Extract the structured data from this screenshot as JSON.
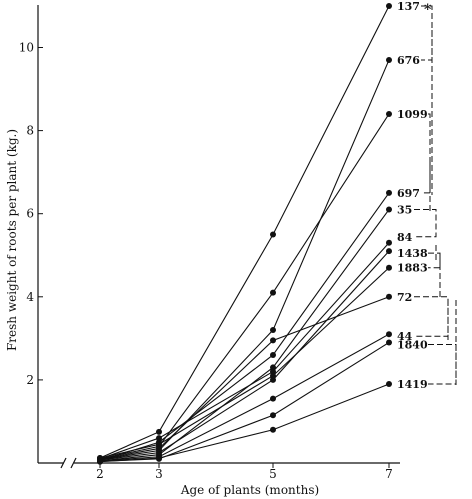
{
  "chart_data": {
    "type": "line",
    "xlabel": "Age of plants (months)",
    "ylabel": "Fresh weight of roots per plant (kg.)",
    "x": [
      2,
      3,
      5,
      7
    ],
    "x_ticks": [
      2,
      3,
      5,
      7
    ],
    "y_ticks": [
      2,
      4,
      6,
      8,
      10
    ],
    "ylim": [
      0,
      11
    ],
    "axis_break": true,
    "grid": false,
    "legend": "none",
    "top_annotation": "*",
    "series": [
      {
        "name": "137",
        "values": [
          0.12,
          0.75,
          5.5,
          11.0
        ]
      },
      {
        "name": "676",
        "values": [
          0.08,
          0.3,
          3.2,
          9.7
        ]
      },
      {
        "name": "1099",
        "values": [
          0.1,
          0.4,
          4.1,
          8.4
        ]
      },
      {
        "name": "697",
        "values": [
          0.06,
          0.5,
          2.6,
          6.5
        ]
      },
      {
        "name": "35",
        "values": [
          0.05,
          0.2,
          2.3,
          6.1
        ]
      },
      {
        "name": "84",
        "values": [
          0.1,
          0.6,
          2.2,
          5.3
        ]
      },
      {
        "name": "1438",
        "values": [
          0.07,
          0.25,
          2.0,
          5.1
        ]
      },
      {
        "name": "1883",
        "values": [
          0.12,
          0.45,
          2.1,
          4.7
        ]
      },
      {
        "name": "72",
        "values": [
          0.09,
          0.35,
          2.95,
          4.0
        ]
      },
      {
        "name": "44",
        "values": [
          0.05,
          0.15,
          1.55,
          3.1
        ]
      },
      {
        "name": "1840",
        "values": [
          0.04,
          0.1,
          1.15,
          2.9
        ]
      },
      {
        "name": "1419",
        "values": [
          0.03,
          0.12,
          0.8,
          1.9
        ]
      }
    ]
  }
}
